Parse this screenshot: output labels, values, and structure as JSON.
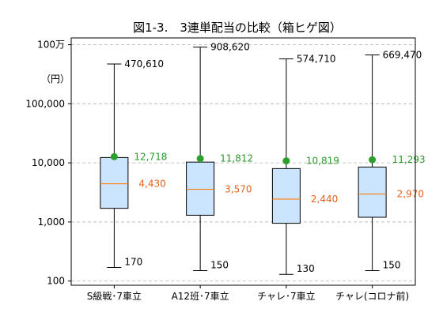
{
  "chart_data": {
    "type": "box",
    "title": "図1-3.　3連単配当の比較（箱ヒゲ図）",
    "y_scale": "log",
    "ylim": [
      85,
      1300000
    ],
    "y_unit_label": "（円）",
    "y_ticks": [
      {
        "value": 100,
        "label": "100"
      },
      {
        "value": 1000,
        "label": "1,000"
      },
      {
        "value": 10000,
        "label": "10,000"
      },
      {
        "value": 100000,
        "label": "100,000"
      },
      {
        "value": 1000000,
        "label": "100万"
      }
    ],
    "grid": "horizontal-dashed",
    "categories": [
      "S級戦･7車立",
      "A12班･7車立",
      "チャレ･7車立",
      "チャレ(コロナ前)"
    ],
    "series": [
      {
        "min": 170,
        "q1": 1700,
        "median": 4430,
        "q3": 12300,
        "max": 470610,
        "mean": 12718,
        "labels": {
          "max": "470,610",
          "mean": "12,718",
          "median": "4,430",
          "min": "170"
        }
      },
      {
        "min": 150,
        "q1": 1300,
        "median": 3570,
        "q3": 10300,
        "max": 908620,
        "mean": 11812,
        "labels": {
          "max": "908,620",
          "mean": "11,812",
          "median": "3,570",
          "min": "150"
        }
      },
      {
        "min": 130,
        "q1": 950,
        "median": 2440,
        "q3": 8000,
        "max": 574710,
        "mean": 10819,
        "labels": {
          "max": "574,710",
          "mean": "10,819",
          "median": "2,440",
          "min": "130"
        }
      },
      {
        "min": 150,
        "q1": 1200,
        "median": 2970,
        "q3": 8500,
        "max": 669470,
        "mean": 11293,
        "labels": {
          "max": "669,470",
          "mean": "11,293",
          "median": "2,970",
          "min": "150"
        }
      }
    ],
    "colors": {
      "box_fill": "#cce5ff",
      "median": "#ff7f0e",
      "mean": "#2ca02c",
      "median_label": "#e8601c",
      "mean_label": "#2a9a2a",
      "grid": "#b0b0b0"
    }
  }
}
